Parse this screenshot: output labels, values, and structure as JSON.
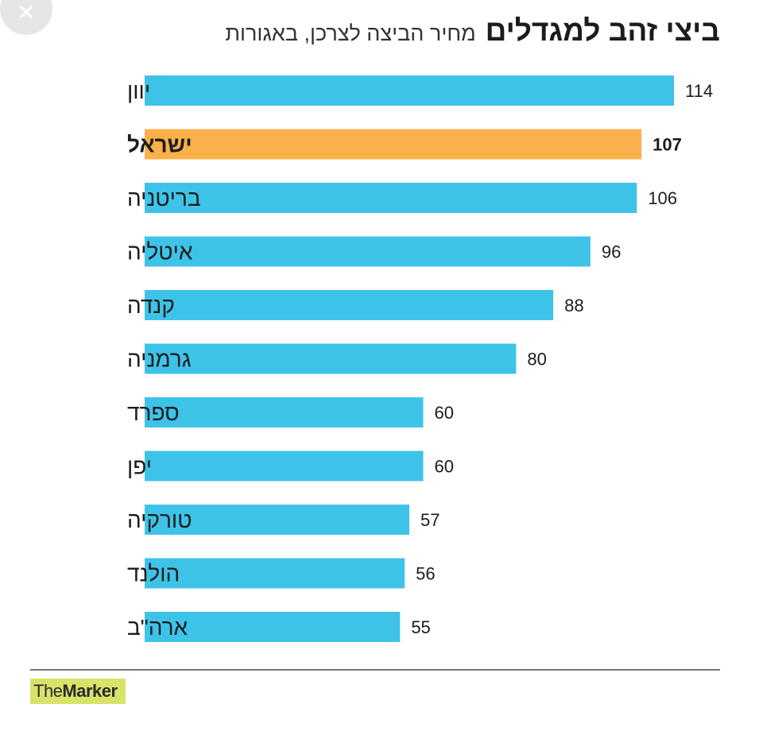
{
  "chart_data": {
    "type": "bar",
    "orientation": "horizontal",
    "title": "ביצי זהב למגדלים",
    "subtitle": "מחיר הביצה לצרכן, באגורות",
    "categories": [
      "יוון",
      "ישראל",
      "בריטניה",
      "איטליה",
      "קנדה",
      "גרמניה",
      "ספרד",
      "יפן",
      "טורקיה",
      "הולנד",
      "ארה\"ב"
    ],
    "values": [
      114,
      107,
      106,
      96,
      88,
      80,
      60,
      60,
      57,
      56,
      55
    ],
    "highlight": "ישראל",
    "xlim": [
      0,
      114
    ],
    "colors": {
      "default": "#3ec3e8",
      "highlight": "#fbb04b"
    },
    "grid": false,
    "legend": "none"
  },
  "brand": {
    "part1": "The",
    "part2": "Marker"
  }
}
